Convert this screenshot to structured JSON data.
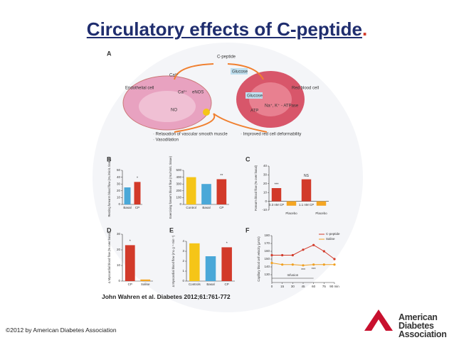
{
  "header": {
    "title": "Circulatory effects of C-peptide",
    "title_period": "."
  },
  "figure": {
    "panel_labels": [
      "A",
      "B",
      "C",
      "D",
      "E",
      "F"
    ],
    "diagram": {
      "hormone": "C-peptide",
      "endothelial_cell": "Endothelial cell",
      "red_blood_cell": "Red blood cell",
      "glucose_outer": "Glucose",
      "glucose_inner": "Glucose",
      "calcium_outer": "Ca²⁺",
      "calcium_inner": "Ca²⁺",
      "enos": "eNOS",
      "no": "NO",
      "atp": "ATP",
      "atpase": "Na⁺, K⁺ - ATPase",
      "effects_left": [
        "· Relaxation of vascular smooth muscle",
        "· Vasodilation"
      ],
      "effects_right": [
        "· Improved red cell deformability"
      ]
    },
    "citation": "John Wahren et al. Diabetes 2012;61:761-772"
  },
  "chart_data": [
    {
      "type": "bar",
      "y_label": "Resting forearm blood flow (mL/min/L tissue)",
      "categories": [
        "Basal",
        "CP"
      ],
      "values": [
        25,
        33
      ],
      "colors": [
        "#4aa8d8",
        "#d23a2a"
      ],
      "value_notes": [
        null,
        "*"
      ],
      "ylim": [
        0,
        50
      ],
      "yticks": [
        0,
        10,
        20,
        30,
        40,
        50
      ]
    },
    {
      "type": "bar",
      "y_label": "Exercising forearm blood flow (mL/min/L tissue)",
      "categories": [
        "Control",
        "Basal",
        "CP"
      ],
      "values": [
        400,
        300,
        370
      ],
      "colors": [
        "#f5c518",
        "#4aa8d8",
        "#d23a2a"
      ],
      "value_notes": [
        null,
        null,
        "**"
      ],
      "ylim": [
        0,
        500
      ],
      "yticks": [
        0,
        100,
        200,
        300,
        400,
        500
      ]
    },
    {
      "type": "bar",
      "y_label": "Forearm blood flow (% over basal)",
      "categories": [
        "0.3 nM CP",
        "Placebo",
        "1.1 nM CP",
        "Placebo"
      ],
      "values": [
        15,
        -5,
        25,
        -5
      ],
      "colors": [
        "#d23a2a",
        "#f5a623",
        "#d23a2a",
        "#f5a623"
      ],
      "value_notes": [
        "***",
        null,
        "NS",
        null
      ],
      "ylim": [
        -10,
        40
      ],
      "yticks": [
        -10,
        0,
        10,
        20,
        30,
        40
      ]
    },
    {
      "type": "bar",
      "y_label": "Δ Myocardial blood flow (% over basal)",
      "categories": [
        "CP",
        "Saline"
      ],
      "values": [
        23,
        1
      ],
      "colors": [
        "#d23a2a",
        "#f5a623"
      ],
      "value_notes": [
        "*",
        null
      ],
      "ylim": [
        0,
        30
      ],
      "yticks": [
        0,
        10,
        20,
        30
      ]
    },
    {
      "type": "bar",
      "y_label": "Δ Myocardial blood flow (mL·g⁻¹·min⁻¹)",
      "categories": [
        "Controls",
        "Basal",
        "CP"
      ],
      "values": [
        3.8,
        2.5,
        3.4
      ],
      "colors": [
        "#f5c518",
        "#4aa8d8",
        "#d23a2a"
      ],
      "value_notes": [
        null,
        null,
        "*"
      ],
      "ylim": [
        0,
        4
      ],
      "yticks": [
        0,
        1,
        2,
        3,
        4
      ]
    },
    {
      "type": "line",
      "y_label": "Capillary blood cell velocity (μm/s)",
      "x": [
        0,
        15,
        30,
        45,
        60,
        75,
        90
      ],
      "series": [
        {
          "name": "C-peptide",
          "color": "#d23a2a",
          "values": [
            155,
            155,
            155,
            162,
            168,
            160,
            150
          ]
        },
        {
          "name": "Saline",
          "color": "#f0a020",
          "values": [
            145,
            143,
            143,
            142,
            143,
            143,
            143
          ]
        }
      ],
      "annotation": "Infusion",
      "stars": [
        "***",
        "***"
      ],
      "xlim": [
        0,
        90
      ],
      "xticks": [
        0,
        15,
        30,
        45,
        60,
        75,
        {
          "value": 90,
          "label": "90 min"
        }
      ],
      "ylim": [
        120,
        180
      ],
      "yticks": [
        130,
        140,
        150,
        160,
        170,
        180
      ]
    }
  ],
  "footer": {
    "copyright": "©2012 by American Diabetes Association",
    "logo_lines": [
      "American",
      "Diabetes",
      "Association"
    ]
  }
}
